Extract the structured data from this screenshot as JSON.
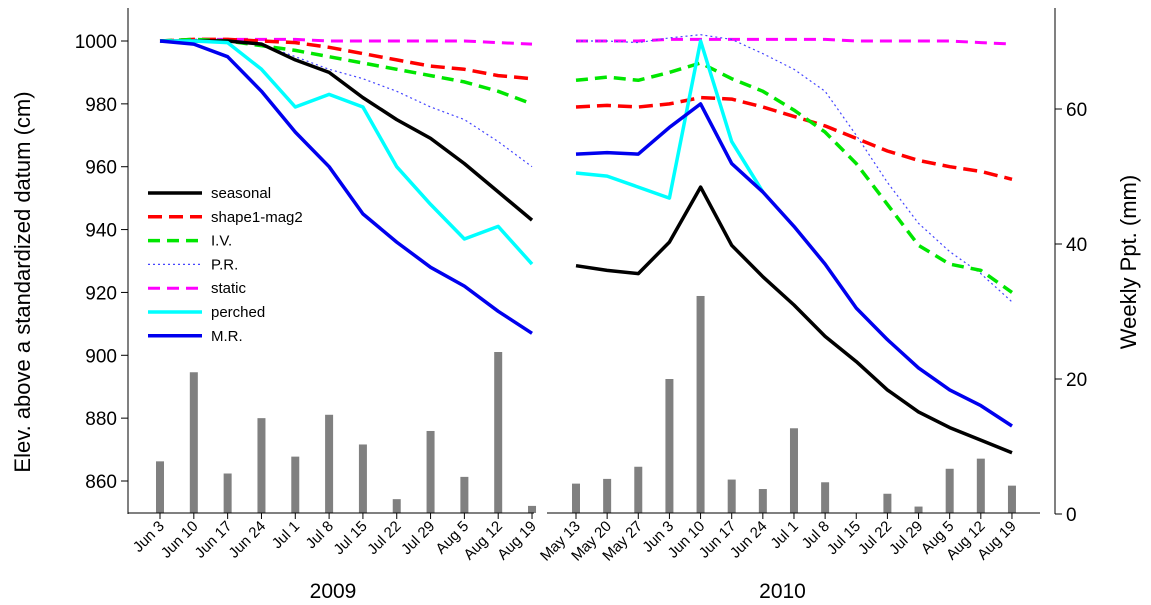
{
  "chart_data": {
    "type": "line",
    "ylabel_left": "Elev. above a standardized datum (cm)",
    "ylabel_right": "Weekly Ppt. (mm)",
    "left_axis": {
      "ylim": [
        850,
        1005
      ],
      "ticks": [
        860,
        880,
        900,
        920,
        940,
        960,
        980,
        1000
      ]
    },
    "right_axis": {
      "ylim": [
        0,
        75
      ],
      "ticks": [
        0,
        20,
        40,
        60
      ]
    },
    "legend_position": "middle-left",
    "legend": [
      {
        "key": "seasonal",
        "label": "seasonal"
      },
      {
        "key": "shape1mag2",
        "label": "shape1-mag2"
      },
      {
        "key": "iv",
        "label": "I.V."
      },
      {
        "key": "pr",
        "label": "P.R."
      },
      {
        "key": "static",
        "label": "static"
      },
      {
        "key": "perched",
        "label": "perched"
      },
      {
        "key": "mr",
        "label": "M.R."
      }
    ],
    "styles": {
      "seasonal": {
        "color": "#000000",
        "dash": "",
        "width": 3.5
      },
      "shape1mag2": {
        "color": "#ff0000",
        "dash": "14,7",
        "width": 3.5
      },
      "iv": {
        "color": "#00e600",
        "dash": "12,7",
        "width": 3.5
      },
      "pr": {
        "color": "#4444ff",
        "dash": "2,3",
        "width": 1.2
      },
      "static": {
        "color": "#ff00ff",
        "dash": "12,7",
        "width": 3
      },
      "perched": {
        "color": "#00ffff",
        "dash": "",
        "width": 3.5
      },
      "mr": {
        "color": "#0000ee",
        "dash": "",
        "width": 3.5
      },
      "bars": {
        "color": "#808080"
      }
    },
    "panels": [
      {
        "year": "2009",
        "categories": [
          "Jun 3",
          "Jun 10",
          "Jun 17",
          "Jun 24",
          "Jul 1",
          "Jul 8",
          "Jul 15",
          "Jul 22",
          "Jul 29",
          "Aug 5",
          "Aug 12",
          "Aug 19"
        ],
        "precip": [
          7.8,
          21,
          6,
          14.2,
          8.5,
          14.7,
          10.3,
          2.2,
          12.3,
          5.5,
          24,
          1.2
        ],
        "series": {
          "seasonal": [
            1000,
            1000,
            1000,
            999,
            994,
            990,
            982,
            975,
            969,
            961,
            952,
            943
          ],
          "shape1mag2": [
            1000,
            1000.5,
            1000.5,
            1000,
            999.5,
            998,
            996,
            994,
            992,
            991,
            989,
            988
          ],
          "iv": [
            1000,
            1000.5,
            1000,
            998.5,
            997,
            995,
            993,
            991,
            989,
            987,
            984,
            980
          ],
          "pr": [
            1000,
            1000.5,
            1000.5,
            999,
            995,
            991,
            988,
            984,
            979,
            975,
            968,
            960
          ],
          "static": [
            1000,
            1000.5,
            1000.5,
            1000.5,
            1000.5,
            1000,
            1000,
            1000,
            1000,
            1000,
            999.5,
            999
          ],
          "perched": [
            1000,
            1000,
            999.5,
            991,
            979,
            983,
            979,
            960,
            948,
            937,
            941,
            929
          ],
          "mr": [
            1000,
            999,
            995,
            984,
            971,
            960,
            945,
            936,
            928,
            922,
            914,
            907
          ]
        }
      },
      {
        "year": "2010",
        "categories": [
          "May 13",
          "May 20",
          "May 27",
          "Jun 3",
          "Jun 10",
          "Jun 17",
          "Jun 24",
          "Jul 1",
          "Jul 8",
          "Jul 15",
          "Jul 22",
          "Jul 29",
          "Aug 5",
          "Aug 12",
          "Aug 19"
        ],
        "precip": [
          4.5,
          5.2,
          7,
          20,
          32.3,
          5.1,
          3.7,
          12.7,
          4.7,
          0,
          3,
          1.1,
          6.7,
          8.2,
          4.2
        ],
        "series": {
          "seasonal": [
            928.5,
            927,
            926,
            936,
            953.5,
            935,
            925,
            916,
            906,
            898,
            889,
            882,
            877,
            873,
            869
          ],
          "shape1mag2": [
            979,
            979.5,
            979,
            980,
            982,
            981.5,
            979,
            976,
            973,
            969,
            965,
            962,
            960,
            958.5,
            956
          ],
          "iv": [
            987.5,
            988.5,
            987.5,
            990,
            993,
            988,
            984,
            978,
            971,
            961,
            948,
            935,
            929,
            927,
            920
          ],
          "pr": [
            1000,
            1000,
            999.5,
            1001,
            1002,
            1000.5,
            996,
            991,
            984,
            970,
            955,
            942,
            933,
            926,
            917
          ],
          "static": [
            1000,
            1000,
            1000,
            1000.5,
            1000.5,
            1000.5,
            1000.5,
            1000.5,
            1000.5,
            1000,
            1000,
            1000,
            1000,
            999.5,
            999
          ],
          "perched": [
            958,
            957,
            953.5,
            950,
            1000,
            968,
            952,
            null,
            null,
            null,
            null,
            null,
            null,
            null,
            null
          ],
          "mr": [
            964,
            964.5,
            964,
            972.5,
            980,
            961,
            952,
            941,
            929,
            915,
            905,
            896,
            889,
            884,
            877.5
          ]
        }
      }
    ]
  }
}
